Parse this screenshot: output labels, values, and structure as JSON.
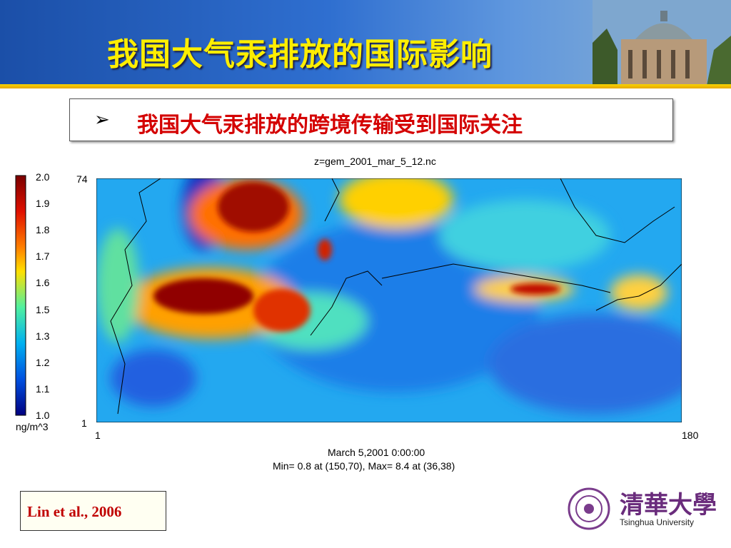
{
  "header": {
    "title": "我国大气汞排放的国际影响"
  },
  "bullet": {
    "marker": "➢",
    "text": "我国大气汞排放的跨境传输受到国际关注"
  },
  "figure": {
    "title": "z=gem_2001_mar_5_12.nc",
    "colorbar_labels": [
      "2.0",
      "1.9",
      "1.8",
      "1.7",
      "1.6",
      "1.5",
      "1.3",
      "1.2",
      "1.1",
      "1.0"
    ],
    "colorbar_unit": "ng/m^3",
    "y_axis_labels": [
      "74",
      "1"
    ],
    "x_axis_labels": [
      "1",
      "180"
    ],
    "caption": [
      "March 5,2001 0:00:00",
      "Min=  0.8 at (150,70), Max=  8.4 at (36,38)"
    ]
  },
  "citation": "Lin et al., 2006",
  "logo": {
    "name_cn": "清華大學",
    "name_en": "Tsinghua University"
  }
}
